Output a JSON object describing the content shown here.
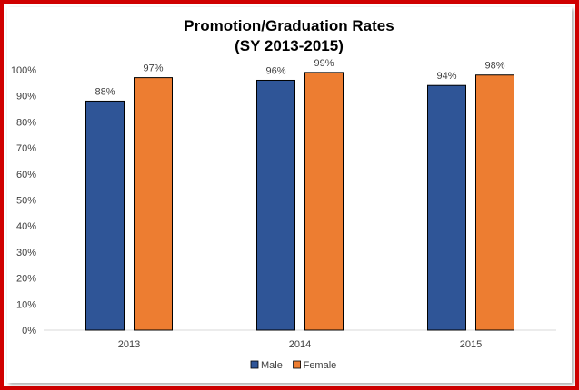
{
  "chart_data": {
    "type": "bar",
    "title_lines": [
      "Promotion/Graduation  Rates",
      "(SY 2013-2015)"
    ],
    "categories": [
      "2013",
      "2014",
      "2015"
    ],
    "series": [
      {
        "name": "Male",
        "values": [
          88,
          96,
          94
        ],
        "labels": [
          "88%",
          "96%",
          "94%"
        ],
        "color": "#2f5597"
      },
      {
        "name": "Female",
        "values": [
          97,
          99,
          98
        ],
        "labels": [
          "97%",
          "99%",
          "98%"
        ],
        "color": "#ed7d31"
      }
    ],
    "y_ticks": [
      "0%",
      "10%",
      "20%",
      "30%",
      "40%",
      "50%",
      "60%",
      "70%",
      "80%",
      "90%",
      "100%"
    ],
    "ylim": [
      0,
      100
    ],
    "xlabel": "",
    "ylabel": "",
    "grid": false,
    "legend_position": "bottom",
    "frame_color": "#d00000"
  }
}
